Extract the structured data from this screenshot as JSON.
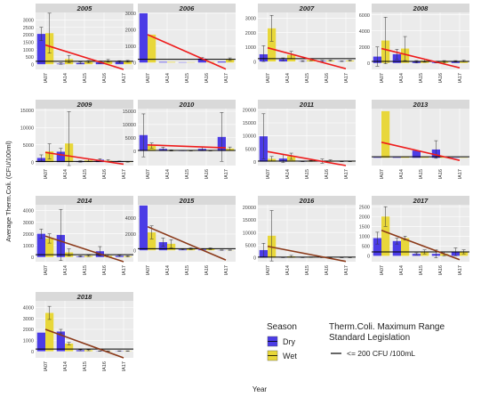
{
  "figure": {
    "y_axis_label": "Average Therm.Coli. (CFU/100ml)",
    "x_axis_label": "Year"
  },
  "colors": {
    "dry": "#4b3ce6",
    "wet": "#e8d73a",
    "trend": "#ee1c1c",
    "trend_alt": "#8b3a1a",
    "reference": "#000000",
    "panel_bg": "#ebebeb",
    "strip_bg": "#d9d9d9",
    "grid": "#ffffff"
  },
  "legend": {
    "season_title": "Season",
    "season_items": [
      "Dry",
      "Wet"
    ],
    "range_title": "Therm.Coli. Maximum Range",
    "range_subtitle": "Standard Legislation",
    "range_item": "<= 200 CFU /100mL"
  },
  "chart_data": [
    {
      "type": "bar",
      "title": "2005",
      "categories": [
        "IA07",
        "IA14",
        "IA15",
        "IA16",
        "IA17"
      ],
      "series": [
        {
          "name": "Dry",
          "values": [
            2050,
            40,
            90,
            140,
            160
          ]
        },
        {
          "name": "Wet",
          "values": [
            2100,
            350,
            170,
            230,
            200
          ]
        }
      ],
      "error_hi": [
        [
          2500,
          100,
          150,
          220,
          240
        ],
        [
          3450,
          600,
          250,
          320,
          260
        ]
      ],
      "error_lo": [
        [
          1600,
          0,
          30,
          60,
          80
        ],
        [
          750,
          100,
          90,
          140,
          140
        ]
      ],
      "trend": {
        "from": 1300,
        "to": -550,
        "color": "trend"
      },
      "reference": 200,
      "ylim": [
        -350,
        3500
      ],
      "yticks": [
        0,
        500,
        1000,
        1500,
        2000,
        2500,
        3000
      ]
    },
    {
      "type": "bar",
      "title": "2006",
      "categories": [
        "IA07",
        "IA14",
        "IA15",
        "IA16",
        "IA17"
      ],
      "series": [
        {
          "name": "Dry",
          "values": [
            3000,
            40,
            20,
            240,
            60
          ]
        },
        {
          "name": "Wet",
          "values": [
            1700,
            40,
            20,
            40,
            200
          ]
        }
      ],
      "error_hi": [
        [
          3000,
          40,
          20,
          300,
          60
        ],
        [
          1700,
          40,
          20,
          40,
          280
        ]
      ],
      "error_lo": [
        [
          3000,
          40,
          20,
          150,
          60
        ],
        [
          1700,
          40,
          20,
          40,
          120
        ]
      ],
      "trend": {
        "from": 1700,
        "to": -400,
        "color": "trend"
      },
      "reference": 200,
      "ylim": [
        -420,
        3050
      ],
      "yticks": [
        0,
        1000,
        2000,
        3000
      ]
    },
    {
      "type": "bar",
      "title": "2007",
      "categories": [
        "IA07",
        "IA14",
        "IA15",
        "IA16",
        "IA17"
      ],
      "series": [
        {
          "name": "Dry",
          "values": [
            500,
            150,
            20,
            40,
            20
          ]
        },
        {
          "name": "Wet",
          "values": [
            2300,
            450,
            100,
            60,
            60
          ]
        }
      ],
      "error_hi": [
        [
          1100,
          250,
          60,
          80,
          40
        ],
        [
          3200,
          700,
          150,
          100,
          100
        ]
      ],
      "error_lo": [
        [
          0,
          50,
          0,
          0,
          0
        ],
        [
          1400,
          200,
          50,
          20,
          20
        ]
      ],
      "trend": {
        "from": 950,
        "to": -500,
        "color": "trend"
      },
      "reference": 200,
      "ylim": [
        -550,
        3400
      ],
      "yticks": [
        0,
        1000,
        2000,
        3000
      ]
    },
    {
      "type": "bar",
      "title": "2008",
      "categories": [
        "IA07",
        "IA14",
        "IA15",
        "IA16",
        "IA17"
      ],
      "series": [
        {
          "name": "Dry",
          "values": [
            800,
            1100,
            150,
            100,
            200
          ]
        },
        {
          "name": "Wet",
          "values": [
            2800,
            1800,
            300,
            150,
            250
          ]
        }
      ],
      "error_hi": [
        [
          2000,
          1700,
          300,
          200,
          300
        ],
        [
          5700,
          3300,
          500,
          300,
          350
        ]
      ],
      "error_lo": [
        [
          -400,
          500,
          0,
          0,
          100
        ],
        [
          -100,
          300,
          100,
          0,
          150
        ]
      ],
      "trend": {
        "from": 1800,
        "to": -600,
        "color": "trend"
      },
      "reference": 200,
      "ylim": [
        -800,
        6300
      ],
      "yticks": [
        0,
        2000,
        4000,
        6000
      ]
    },
    {
      "type": "bar",
      "title": "2009",
      "categories": [
        "IA07",
        "IA14",
        "IA15",
        "IA16",
        "IA17"
      ],
      "series": [
        {
          "name": "Dry",
          "values": [
            1200,
            3000,
            200,
            700,
            200
          ]
        },
        {
          "name": "Wet",
          "values": [
            3100,
            5400,
            500,
            400,
            100
          ]
        }
      ],
      "error_hi": [
        [
          2100,
          4000,
          400,
          1000,
          300
        ],
        [
          5300,
          14600,
          900,
          700,
          200
        ]
      ],
      "error_lo": [
        [
          300,
          2000,
          0,
          400,
          100
        ],
        [
          900,
          -3800,
          100,
          100,
          0
        ]
      ],
      "trend": {
        "from": 2800,
        "to": -600,
        "color": "trend"
      },
      "reference": 200,
      "ylim": [
        -1000,
        15500
      ],
      "yticks": [
        0,
        5000,
        10000,
        15000
      ]
    },
    {
      "type": "bar",
      "title": "2010",
      "categories": [
        "IA07",
        "IA14",
        "IA15",
        "IA16",
        "IA17"
      ],
      "series": [
        {
          "name": "Dry",
          "values": [
            6000,
            800,
            200,
            800,
            5300
          ]
        },
        {
          "name": "Wet",
          "values": [
            2000,
            200,
            100,
            100,
            900
          ]
        }
      ],
      "error_hi": [
        [
          14000,
          1400,
          300,
          1500,
          14500
        ],
        [
          3000,
          400,
          200,
          200,
          1500
        ]
      ],
      "error_lo": [
        [
          -2200,
          200,
          100,
          100,
          -3900
        ],
        [
          1000,
          0,
          0,
          0,
          300
        ]
      ],
      "trend": {
        "from": 2300,
        "to": 1200,
        "color": "trend"
      },
      "reference": 200,
      "ylim": [
        -5500,
        16000
      ],
      "yticks": [
        0,
        5000,
        10000,
        15000
      ]
    },
    {
      "type": "bar",
      "title": "2011",
      "categories": [
        "IA07",
        "IA14",
        "IA15",
        "IA16",
        "IA17"
      ],
      "series": [
        {
          "name": "Dry",
          "values": [
            9800,
            1200,
            150,
            200,
            20
          ]
        },
        {
          "name": "Wet",
          "values": [
            1100,
            2100,
            300,
            400,
            20
          ]
        }
      ],
      "error_hi": [
        [
          18500,
          2700,
          300,
          1000,
          40
        ],
        [
          2000,
          3300,
          500,
          700,
          40
        ]
      ],
      "error_lo": [
        [
          1100,
          -300,
          0,
          -600,
          0
        ],
        [
          200,
          900,
          100,
          100,
          0
        ]
      ],
      "trend": {
        "from": 3900,
        "to": -1500,
        "color": "trend"
      },
      "reference": 200,
      "ylim": [
        -1500,
        20500
      ],
      "yticks": [
        0,
        5000,
        10000,
        15000,
        20000
      ]
    },
    {
      "type": "bar",
      "title": "2013",
      "categories": [
        "IA07",
        "IA14",
        "IA15",
        "IA16",
        "IA17"
      ],
      "series": [
        {
          "name": "Dry",
          "values": [
            100,
            100,
            1400,
            1600,
            60
          ]
        },
        {
          "name": "Wet",
          "values": [
            9000,
            200,
            200,
            200,
            60
          ]
        }
      ],
      "error_hi": [
        [
          100,
          100,
          1400,
          3300,
          60
        ],
        [
          9000,
          200,
          200,
          200,
          60
        ]
      ],
      "error_lo": [
        [
          100,
          100,
          1400,
          -100,
          60
        ],
        [
          9000,
          200,
          200,
          200,
          60
        ]
      ],
      "trend": {
        "from": 3000,
        "to": -500,
        "color": "trend"
      },
      "reference": 200,
      "ylim": [
        -1500,
        9500
      ],
      "yticks": []
    },
    {
      "type": "bar",
      "title": "2014",
      "categories": [
        "IA07",
        "IA14",
        "IA15",
        "IA16",
        "IA17"
      ],
      "series": [
        {
          "name": "Dry",
          "values": [
            2000,
            1900,
            50,
            500,
            100
          ]
        },
        {
          "name": "Wet",
          "values": [
            1600,
            400,
            100,
            100,
            60
          ]
        }
      ],
      "error_hi": [
        [
          2400,
          4100,
          100,
          900,
          150
        ],
        [
          2000,
          700,
          150,
          200,
          100
        ]
      ],
      "error_lo": [
        [
          1600,
          -300,
          0,
          100,
          50
        ],
        [
          1200,
          100,
          50,
          0,
          20
        ]
      ],
      "trend": {
        "from": 1800,
        "to": -500,
        "color": "trend_alt"
      },
      "reference": 200,
      "ylim": [
        -400,
        4500
      ],
      "yticks": [
        0,
        1000,
        2000,
        3000,
        4000
      ]
    },
    {
      "type": "bar",
      "title": "2015",
      "categories": [
        "IA07",
        "IA14",
        "IA15",
        "IA16",
        "IA17"
      ],
      "series": [
        {
          "name": "Dry",
          "values": [
            5500,
            1000,
            100,
            100,
            20
          ]
        },
        {
          "name": "Wet",
          "values": [
            2200,
            800,
            200,
            200,
            20
          ]
        }
      ],
      "error_hi": [
        [
          5500,
          1500,
          150,
          150,
          40
        ],
        [
          3000,
          1300,
          300,
          300,
          40
        ]
      ],
      "error_lo": [
        [
          5500,
          500,
          50,
          50,
          0
        ],
        [
          1400,
          300,
          100,
          100,
          0
        ]
      ],
      "trend": {
        "from": 2900,
        "to": -1200,
        "color": "trend_alt"
      },
      "reference": 200,
      "ylim": [
        -1400,
        5600
      ],
      "yticks": [
        0,
        2000,
        4000
      ]
    },
    {
      "type": "bar",
      "title": "2016",
      "categories": [
        "IA07",
        "IA14",
        "IA15",
        "IA16",
        "IA17"
      ],
      "series": [
        {
          "name": "Dry",
          "values": [
            3000,
            100,
            100,
            20,
            20
          ]
        },
        {
          "name": "Wet",
          "values": [
            8700,
            500,
            200,
            20,
            20
          ]
        }
      ],
      "error_hi": [
        [
          5700,
          200,
          200,
          40,
          40
        ],
        [
          18700,
          900,
          300,
          40,
          40
        ]
      ],
      "error_lo": [
        [
          300,
          0,
          0,
          0,
          0
        ],
        [
          -1300,
          100,
          100,
          0,
          0
        ]
      ],
      "trend": {
        "from": 4500,
        "to": -1500,
        "color": "trend_alt"
      },
      "reference": 200,
      "ylim": [
        -1600,
        21000
      ],
      "yticks": [
        0,
        5000,
        10000,
        15000,
        20000
      ]
    },
    {
      "type": "bar",
      "title": "2017",
      "categories": [
        "IA07",
        "IA14",
        "IA15",
        "IA16",
        "IA17"
      ],
      "series": [
        {
          "name": "Dry",
          "values": [
            900,
            750,
            100,
            100,
            200
          ]
        },
        {
          "name": "Wet",
          "values": [
            2000,
            900,
            200,
            100,
            200
          ]
        }
      ],
      "error_hi": [
        [
          1200,
          900,
          150,
          300,
          400
        ],
        [
          2500,
          1000,
          300,
          200,
          300
        ]
      ],
      "error_lo": [
        [
          600,
          600,
          50,
          -100,
          0
        ],
        [
          1500,
          800,
          100,
          0,
          100
        ]
      ],
      "trend": {
        "from": 1300,
        "to": -200,
        "color": "trend_alt"
      },
      "reference": 200,
      "ylim": [
        -300,
        2600
      ],
      "yticks": [
        0,
        500,
        1000,
        1500,
        2000,
        2500
      ]
    },
    {
      "type": "bar",
      "title": "2018",
      "categories": [
        "IA07",
        "IA14",
        "IA15",
        "IA16",
        "IA17"
      ],
      "series": [
        {
          "name": "Dry",
          "values": [
            1700,
            1800,
            100,
            20,
            20
          ]
        },
        {
          "name": "Wet",
          "values": [
            3500,
            700,
            100,
            20,
            20
          ]
        }
      ],
      "error_hi": [
        [
          1700,
          2000,
          150,
          40,
          40
        ],
        [
          4100,
          800,
          150,
          40,
          40
        ]
      ],
      "error_lo": [
        [
          1700,
          1600,
          50,
          0,
          0
        ],
        [
          2900,
          600,
          50,
          0,
          0
        ]
      ],
      "trend": {
        "from": 2000,
        "to": -600,
        "color": "trend_alt"
      },
      "reference": 200,
      "ylim": [
        -600,
        4600
      ],
      "yticks": [
        0,
        1000,
        2000,
        3000,
        4000
      ]
    }
  ]
}
